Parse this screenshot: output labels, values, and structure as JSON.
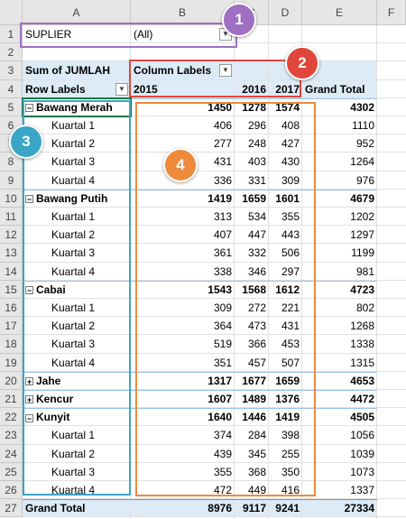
{
  "sheet": {
    "columns": [
      "A",
      "B",
      "C",
      "D",
      "E",
      "F"
    ],
    "row_numbers": [
      1,
      2,
      3,
      4,
      5,
      6,
      7,
      8,
      9,
      10,
      11,
      12,
      13,
      14,
      15,
      16,
      17,
      18,
      19,
      20,
      21,
      22,
      23,
      24,
      25,
      26,
      27
    ]
  },
  "filter": {
    "field": "SUPLIER",
    "value": "(All)"
  },
  "pivot": {
    "measure": "Sum of JUMLAH",
    "column_labels": "Column Labels",
    "row_labels": "Row Labels",
    "years": [
      2015,
      2016,
      2017
    ],
    "total_header": "Grand Total",
    "groups": [
      {
        "label": "Bawang Merah",
        "values": [
          1450,
          1278,
          1574
        ],
        "total": 4302,
        "children": [
          {
            "label": "Kuartal 1",
            "values": [
              406,
              296,
              408
            ],
            "total": 1110
          },
          {
            "label": "Kuartal 2",
            "values": [
              277,
              248,
              427
            ],
            "total": 952
          },
          {
            "label": "Kuartal 3",
            "values": [
              431,
              403,
              430
            ],
            "total": 1264
          },
          {
            "label": "Kuartal 4",
            "values": [
              336,
              331,
              309
            ],
            "total": 976
          }
        ]
      },
      {
        "label": "Bawang Putih",
        "values": [
          1419,
          1659,
          1601
        ],
        "total": 4679,
        "children": [
          {
            "label": "Kuartal 1",
            "values": [
              313,
              534,
              355
            ],
            "total": 1202
          },
          {
            "label": "Kuartal 2",
            "values": [
              407,
              447,
              443
            ],
            "total": 1297
          },
          {
            "label": "Kuartal 3",
            "values": [
              361,
              332,
              506
            ],
            "total": 1199
          },
          {
            "label": "Kuartal 4",
            "values": [
              338,
              346,
              297
            ],
            "total": 981
          }
        ]
      },
      {
        "label": "Cabai",
        "values": [
          1543,
          1568,
          1612
        ],
        "total": 4723,
        "children": [
          {
            "label": "Kuartal 1",
            "values": [
              309,
              272,
              221
            ],
            "total": 802
          },
          {
            "label": "Kuartal 2",
            "values": [
              364,
              473,
              431
            ],
            "total": 1268
          },
          {
            "label": "Kuartal 3",
            "values": [
              519,
              366,
              453
            ],
            "total": 1338
          },
          {
            "label": "Kuartal 4",
            "values": [
              351,
              457,
              507
            ],
            "total": 1315
          }
        ]
      },
      {
        "label": "Jahe",
        "values": [
          1317,
          1677,
          1659
        ],
        "total": 4653
      },
      {
        "label": "Kencur",
        "values": [
          1607,
          1489,
          1376
        ],
        "total": 4472
      },
      {
        "label": "Kunyit",
        "values": [
          1640,
          1446,
          1419
        ],
        "total": 4505,
        "children": [
          {
            "label": "Kuartal 1",
            "values": [
              374,
              284,
              398
            ],
            "total": 1056
          },
          {
            "label": "Kuartal 2",
            "values": [
              439,
              345,
              255
            ],
            "total": 1039
          },
          {
            "label": "Kuartal 3",
            "values": [
              355,
              368,
              350
            ],
            "total": 1073
          },
          {
            "label": "Kuartal 4",
            "values": [
              472,
              449,
              416
            ],
            "total": 1337
          }
        ]
      }
    ],
    "grand_total": {
      "label": "Grand Total",
      "values": [
        8976,
        9117,
        9241
      ],
      "total": 27334
    }
  },
  "callouts": [
    "1",
    "2",
    "3",
    "4"
  ]
}
